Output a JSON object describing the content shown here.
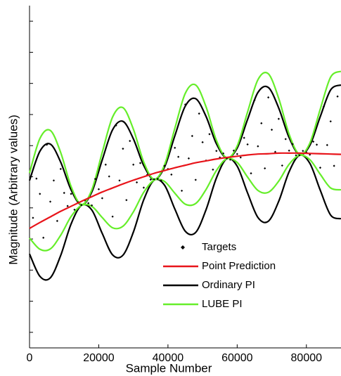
{
  "chart_data": {
    "type": "line",
    "x_label": "Sample Number",
    "y_label": "Magnitude  (Arbitrary values)",
    "x": [
      0,
      3000,
      6000,
      9000,
      12000,
      15000,
      18000,
      21000,
      24000,
      27000,
      30000,
      33000,
      36000,
      39000,
      42000,
      45000,
      48000,
      51000,
      54000,
      57000,
      60000,
      63000,
      66000,
      69000,
      72000,
      75000,
      78000,
      81000,
      84000,
      87000,
      90000
    ],
    "xlim": [
      0,
      90000
    ],
    "xticks": [
      0,
      20000,
      40000,
      60000,
      80000
    ],
    "ylim": [
      0,
      11
    ],
    "yticks": [
      0.5,
      1.5,
      2.5,
      3.5,
      4.5,
      5.5,
      6.5,
      7.5,
      8.5,
      9.5,
      10.5
    ],
    "series": [
      {
        "name": "Targets",
        "type": "scatter",
        "color": "#000000",
        "x": [
          1000,
          2000,
          3000,
          4000,
          5000,
          6000,
          7000,
          8000,
          9000,
          10000,
          11000,
          12000,
          13000,
          14000,
          15000,
          16000,
          17000,
          18000,
          19000,
          20000,
          21000,
          22000,
          23000,
          24000,
          25000,
          26000,
          27000,
          28000,
          29000,
          30000,
          31000,
          32000,
          33000,
          34000,
          35000,
          36000,
          37000,
          38000,
          39000,
          40000,
          41000,
          42000,
          43000,
          44000,
          45000,
          46000,
          47000,
          48000,
          49000,
          50000,
          51000,
          52000,
          53000,
          54000,
          55000,
          56000,
          57000,
          58000,
          59000,
          60000,
          61000,
          62000,
          63000,
          64000,
          65000,
          66000,
          67000,
          68000,
          69000,
          70000,
          71000,
          72000,
          73000,
          74000,
          75000,
          76000,
          77000,
          78000,
          79000,
          80000,
          81000,
          82000,
          83000,
          84000,
          85000,
          86000,
          87000,
          88000,
          89000
        ],
        "values": [
          4.18,
          5.44,
          4.95,
          3.54,
          6.53,
          4.7,
          5.38,
          4.08,
          5.75,
          4.98,
          4.56,
          4.95,
          4.44,
          4.68,
          4.59,
          4.74,
          4.65,
          4.58,
          5.43,
          5.1,
          4.81,
          5.89,
          5.51,
          4.22,
          7.15,
          5.38,
          6.4,
          4.75,
          6.65,
          5.89,
          5.32,
          5.94,
          5.15,
          5.56,
          5.41,
          5.42,
          5.43,
          5.38,
          5.85,
          5.75,
          5.57,
          6.43,
          6.14,
          5.05,
          7.82,
          6.09,
          6.81,
          5.4,
          7.53,
          6.61,
          6.02,
          6.87,
          5.73,
          6.33,
          6.12,
          6.25,
          6.09,
          6.05,
          6.34,
          6.23,
          6.12,
          6.75,
          6.54,
          5.61,
          7.96,
          6.48,
          7.22,
          5.77,
          8.05,
          7.01,
          6.3,
          7.36,
          5.86,
          6.71,
          6.34,
          6.55,
          6.19,
          6.19,
          6.33,
          6.28,
          6.21,
          6.63,
          6.53,
          5.79,
          7.75,
          6.52,
          7.28,
          5.85,
          8.08
        ]
      },
      {
        "name": "Point Prediction",
        "type": "line",
        "color": "#e8141a",
        "values": [
          3.84,
          4.03,
          4.21,
          4.39,
          4.55,
          4.71,
          4.86,
          5.01,
          5.14,
          5.27,
          5.39,
          5.5,
          5.61,
          5.7,
          5.79,
          5.87,
          5.95,
          6.01,
          6.07,
          6.12,
          6.16,
          6.2,
          6.23,
          6.24,
          6.26,
          6.26,
          6.26,
          6.25,
          6.24,
          6.23,
          6.22
        ]
      },
      {
        "name": "Ordinary PI",
        "type": "band",
        "color": "#000000",
        "upper": [
          5.38,
          6.32,
          6.55,
          5.97,
          5.08,
          4.6,
          5.01,
          6.04,
          7.01,
          7.28,
          6.72,
          5.86,
          5.41,
          5.81,
          6.82,
          7.77,
          8.01,
          7.44,
          6.56,
          6.1,
          6.42,
          7.34,
          8.21,
          8.37,
          7.71,
          6.76,
          6.21,
          6.51,
          7.43,
          8.29,
          8.45
        ],
        "lower": [
          3.02,
          2.3,
          2.25,
          2.97,
          3.98,
          4.58,
          4.43,
          3.68,
          2.99,
          2.98,
          3.72,
          4.76,
          5.39,
          5.23,
          4.46,
          3.75,
          3.71,
          4.44,
          5.46,
          6.08,
          5.84,
          4.98,
          4.19,
          4.07,
          4.71,
          5.66,
          6.19,
          5.93,
          5.07,
          4.27,
          4.15
        ]
      },
      {
        "name": "LUBE PI",
        "type": "band",
        "color": "#66ee2a",
        "upper": [
          5.62,
          6.73,
          6.99,
          6.28,
          5.19,
          4.61,
          5.08,
          6.28,
          7.42,
          7.72,
          7.03,
          5.97,
          5.42,
          5.88,
          7.06,
          8.18,
          8.45,
          7.75,
          6.67,
          6.11,
          6.49,
          7.58,
          8.62,
          8.81,
          8.02,
          6.87,
          6.22,
          6.58,
          7.67,
          8.7,
          8.89
        ],
        "lower": [
          3.53,
          3.17,
          3.18,
          3.62,
          4.22,
          4.58,
          4.55,
          4.19,
          3.86,
          3.91,
          4.37,
          5.0,
          5.39,
          5.35,
          4.97,
          4.62,
          4.64,
          5.09,
          5.7,
          6.08,
          5.96,
          5.49,
          5.06,
          5.0,
          5.36,
          5.9,
          6.19,
          6.05,
          5.58,
          5.14,
          5.08
        ]
      }
    ],
    "legend": "lower right"
  }
}
